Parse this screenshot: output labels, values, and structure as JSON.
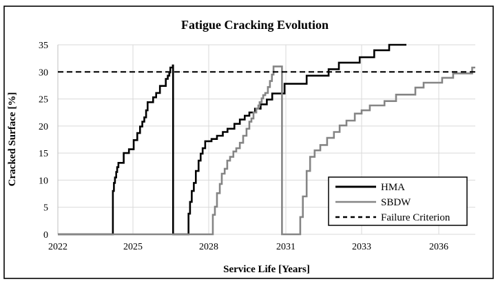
{
  "figure": {
    "title": "Fatigue Cracking Evolution"
  },
  "colors": {
    "background": "#ffffff",
    "border": "#000000",
    "gridline": "#d9d9d9",
    "axis_line": "#bfbfbf",
    "hma": "#000000",
    "sbdw": "#858585",
    "failure": "#000000"
  },
  "chart_data": {
    "type": "line",
    "title": "Fatigue Cracking Evolution",
    "xlabel": "Service Life [Years]",
    "ylabel": "Cracked Surface [%]",
    "ylim": [
      0,
      35
    ],
    "y_ticks": [
      0,
      5,
      10,
      15,
      20,
      25,
      30,
      35
    ],
    "x_tick_labels": [
      "2022",
      "2025",
      "2028",
      "2031",
      "2033",
      "2036"
    ],
    "x_tick_years": [
      2022,
      2025,
      2028,
      2031,
      2033,
      2036
    ],
    "x_axis_anchors": [
      [
        2022,
        0.0
      ],
      [
        2025,
        0.1799
      ],
      [
        2028,
        0.3614
      ],
      [
        2031,
        0.5462
      ],
      [
        2033,
        0.7277
      ],
      [
        2036,
        0.9126
      ],
      [
        2037.42,
        1.0
      ]
    ],
    "grid": true,
    "legend_position": "lower right",
    "series": [
      {
        "name": "HMA",
        "color": "#000000",
        "style": "solid",
        "step": true,
        "points": [
          [
            2022.0,
            0
          ],
          [
            2024.19,
            0
          ],
          [
            2024.2,
            8.0
          ],
          [
            2024.24,
            9.5
          ],
          [
            2024.28,
            10.5
          ],
          [
            2024.33,
            11.5
          ],
          [
            2024.37,
            12.4
          ],
          [
            2024.42,
            13.2
          ],
          [
            2024.63,
            15.0
          ],
          [
            2024.84,
            15.7
          ],
          [
            2025.03,
            17.4
          ],
          [
            2025.17,
            18.7
          ],
          [
            2025.28,
            19.9
          ],
          [
            2025.37,
            20.8
          ],
          [
            2025.45,
            21.6
          ],
          [
            2025.52,
            22.9
          ],
          [
            2025.58,
            24.4
          ],
          [
            2025.8,
            25.3
          ],
          [
            2025.92,
            26.1
          ],
          [
            2026.07,
            27.4
          ],
          [
            2026.3,
            28.7
          ],
          [
            2026.38,
            29.3
          ],
          [
            2026.44,
            29.9
          ],
          [
            2026.48,
            30.8
          ],
          [
            2026.58,
            31.2
          ],
          [
            2026.59,
            0
          ],
          [
            2027.18,
            0
          ],
          [
            2027.2,
            3.8
          ],
          [
            2027.26,
            6.0
          ],
          [
            2027.33,
            8.0
          ],
          [
            2027.41,
            9.5
          ],
          [
            2027.49,
            11.7
          ],
          [
            2027.6,
            13.6
          ],
          [
            2027.68,
            14.9
          ],
          [
            2027.76,
            15.9
          ],
          [
            2027.86,
            17.2
          ],
          [
            2028.11,
            17.6
          ],
          [
            2028.32,
            18.2
          ],
          [
            2028.55,
            18.9
          ],
          [
            2028.73,
            19.5
          ],
          [
            2029.0,
            20.4
          ],
          [
            2029.21,
            21.2
          ],
          [
            2029.4,
            21.9
          ],
          [
            2029.58,
            22.5
          ],
          [
            2029.8,
            23.2
          ],
          [
            2030.02,
            24.0
          ],
          [
            2030.26,
            24.9
          ],
          [
            2030.47,
            26.0
          ],
          [
            2030.95,
            27.8
          ],
          [
            2031.55,
            29.3
          ],
          [
            2032.13,
            30.5
          ],
          [
            2032.4,
            31.7
          ],
          [
            2032.95,
            32.7
          ],
          [
            2033.49,
            34.0
          ],
          [
            2034.07,
            35.0
          ],
          [
            2034.74,
            35.0
          ]
        ]
      },
      {
        "name": "SBDW",
        "color": "#858585",
        "style": "solid",
        "step": true,
        "points": [
          [
            2022.0,
            0
          ],
          [
            2028.08,
            0
          ],
          [
            2028.16,
            3.6
          ],
          [
            2028.24,
            5.1
          ],
          [
            2028.32,
            7.6
          ],
          [
            2028.43,
            9.3
          ],
          [
            2028.51,
            11.2
          ],
          [
            2028.62,
            12.1
          ],
          [
            2028.72,
            13.6
          ],
          [
            2028.83,
            14.3
          ],
          [
            2028.96,
            15.3
          ],
          [
            2029.07,
            15.9
          ],
          [
            2029.21,
            16.9
          ],
          [
            2029.34,
            18.2
          ],
          [
            2029.47,
            19.5
          ],
          [
            2029.58,
            20.8
          ],
          [
            2029.66,
            21.4
          ],
          [
            2029.74,
            22.5
          ],
          [
            2029.85,
            23.2
          ],
          [
            2029.93,
            23.8
          ],
          [
            2029.98,
            24.4
          ],
          [
            2030.06,
            25.1
          ],
          [
            2030.12,
            25.7
          ],
          [
            2030.2,
            26.1
          ],
          [
            2030.3,
            27.2
          ],
          [
            2030.38,
            28.3
          ],
          [
            2030.46,
            29.5
          ],
          [
            2030.52,
            31.0
          ],
          [
            2030.84,
            31.0
          ],
          [
            2030.85,
            0
          ],
          [
            2031.36,
            0
          ],
          [
            2031.38,
            3.2
          ],
          [
            2031.45,
            7.0
          ],
          [
            2031.55,
            11.7
          ],
          [
            2031.64,
            14.3
          ],
          [
            2031.76,
            15.5
          ],
          [
            2031.91,
            16.5
          ],
          [
            2032.09,
            17.8
          ],
          [
            2032.27,
            18.9
          ],
          [
            2032.42,
            20.1
          ],
          [
            2032.6,
            21.0
          ],
          [
            2032.82,
            22.3
          ],
          [
            2033.0,
            22.9
          ],
          [
            2033.32,
            23.8
          ],
          [
            2033.89,
            24.6
          ],
          [
            2034.34,
            25.8
          ],
          [
            2035.09,
            27.1
          ],
          [
            2035.41,
            28.0
          ],
          [
            2036.13,
            28.9
          ],
          [
            2036.56,
            29.7
          ],
          [
            2037.3,
            30.8
          ],
          [
            2037.42,
            30.8
          ]
        ]
      },
      {
        "name": "Failure Criterion",
        "color": "#000000",
        "style": "dashed",
        "step": false,
        "points": [
          [
            2022,
            30
          ],
          [
            2037.42,
            30
          ]
        ]
      }
    ]
  }
}
